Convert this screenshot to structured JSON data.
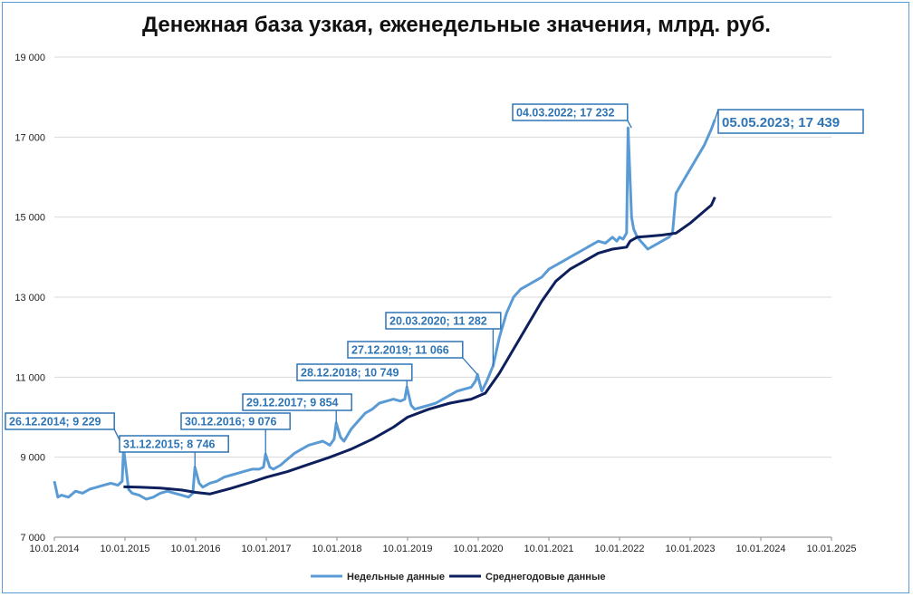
{
  "chart_data": {
    "type": "line",
    "title": "Денежная база узкая, еженедельные значения, млрд. руб.",
    "ylim": [
      7000,
      19000
    ],
    "y_ticks": [
      "7 000",
      "9 000",
      "11 000",
      "13 000",
      "15 000",
      "17 000",
      "19 000"
    ],
    "y_tick_values": [
      7000,
      9000,
      11000,
      13000,
      15000,
      17000,
      19000
    ],
    "x_ticks": [
      "10.01.2014",
      "10.01.2015",
      "10.01.2016",
      "10.01.2017",
      "10.01.2018",
      "10.01.2019",
      "10.01.2020",
      "10.01.2021",
      "10.01.2022",
      "10.01.2023",
      "10.01.2024",
      "10.01.2025"
    ],
    "x_tick_values": [
      2014.0,
      2015.0,
      2016.0,
      2017.0,
      2018.0,
      2019.0,
      2020.0,
      2021.0,
      2022.0,
      2023.0,
      2024.0,
      2025.0
    ],
    "grid": true,
    "legend_position": "bottom",
    "colors": {
      "weekly": "#5b9bd5",
      "average": "#0d1f5c",
      "annotation": "#2e75b6"
    },
    "series": [
      {
        "name": "Недельные данные",
        "x": [
          2014.0,
          2014.05,
          2014.1,
          2014.2,
          2014.3,
          2014.4,
          2014.5,
          2014.6,
          2014.7,
          2014.8,
          2014.9,
          2014.96,
          2014.98,
          2015.05,
          2015.1,
          2015.2,
          2015.3,
          2015.4,
          2015.5,
          2015.6,
          2015.7,
          2015.8,
          2015.9,
          2015.96,
          2015.99,
          2016.05,
          2016.1,
          2016.2,
          2016.3,
          2016.4,
          2016.5,
          2016.6,
          2016.7,
          2016.8,
          2016.9,
          2016.96,
          2016.99,
          2017.05,
          2017.1,
          2017.2,
          2017.3,
          2017.4,
          2017.5,
          2017.6,
          2017.7,
          2017.8,
          2017.9,
          2017.96,
          2017.99,
          2018.05,
          2018.1,
          2018.2,
          2018.3,
          2018.4,
          2018.5,
          2018.6,
          2018.7,
          2018.8,
          2018.9,
          2018.96,
          2018.99,
          2019.05,
          2019.1,
          2019.2,
          2019.3,
          2019.4,
          2019.5,
          2019.6,
          2019.7,
          2019.8,
          2019.9,
          2019.96,
          2019.99,
          2020.05,
          2020.12,
          2020.19,
          2020.21,
          2020.3,
          2020.4,
          2020.5,
          2020.6,
          2020.7,
          2020.8,
          2020.9,
          2021.0,
          2021.1,
          2021.2,
          2021.3,
          2021.4,
          2021.5,
          2021.6,
          2021.7,
          2021.8,
          2021.9,
          2021.96,
          2022.0,
          2022.05,
          2022.1,
          2022.12,
          2022.17,
          2022.2,
          2022.25,
          2022.3,
          2022.4,
          2022.5,
          2022.6,
          2022.7,
          2022.75,
          2022.8,
          2022.9,
          2023.0,
          2023.1,
          2023.2,
          2023.3,
          2023.35
        ],
        "values": [
          8400,
          8000,
          8050,
          8000,
          8150,
          8100,
          8200,
          8250,
          8300,
          8350,
          8300,
          8400,
          9229,
          8200,
          8100,
          8050,
          7950,
          8000,
          8100,
          8150,
          8100,
          8050,
          8000,
          8100,
          8746,
          8350,
          8250,
          8350,
          8400,
          8500,
          8550,
          8600,
          8650,
          8700,
          8700,
          8750,
          9076,
          8750,
          8700,
          8800,
          8950,
          9100,
          9200,
          9300,
          9350,
          9400,
          9300,
          9450,
          9854,
          9500,
          9400,
          9700,
          9900,
          10100,
          10200,
          10350,
          10400,
          10450,
          10400,
          10450,
          10749,
          10300,
          10200,
          10250,
          10300,
          10350,
          10450,
          10550,
          10650,
          10700,
          10750,
          10900,
          11066,
          10650,
          10900,
          11200,
          11282,
          12000,
          12600,
          13000,
          13200,
          13300,
          13400,
          13500,
          13700,
          13800,
          13900,
          14000,
          14100,
          14200,
          14300,
          14400,
          14350,
          14500,
          14400,
          14500,
          14450,
          14600,
          17232,
          15000,
          14700,
          14500,
          14400,
          14200,
          14300,
          14400,
          14500,
          14600,
          15600,
          15900,
          16200,
          16500,
          16800,
          17200,
          17439
        ]
      },
      {
        "name": "Среднегодовые данные",
        "x": [
          2014.98,
          2015.2,
          2015.5,
          2015.8,
          2016.0,
          2016.2,
          2016.5,
          2016.8,
          2017.0,
          2017.3,
          2017.6,
          2017.9,
          2018.2,
          2018.5,
          2018.8,
          2019.0,
          2019.3,
          2019.6,
          2019.9,
          2020.1,
          2020.3,
          2020.5,
          2020.7,
          2020.9,
          2021.1,
          2021.3,
          2021.5,
          2021.7,
          2021.9,
          2022.1,
          2022.15,
          2022.25,
          2022.4,
          2022.6,
          2022.8,
          2023.0,
          2023.2,
          2023.3,
          2023.35
        ],
        "values": [
          8260,
          8250,
          8230,
          8180,
          8120,
          8080,
          8220,
          8380,
          8500,
          8640,
          8820,
          9000,
          9200,
          9450,
          9750,
          10000,
          10200,
          10350,
          10450,
          10600,
          11100,
          11700,
          12300,
          12900,
          13400,
          13700,
          13900,
          14100,
          14200,
          14250,
          14400,
          14500,
          14520,
          14550,
          14600,
          14850,
          15150,
          15300,
          15500
        ]
      }
    ],
    "annotations": [
      {
        "label": "26.12.2014; 9 229",
        "x": 2014.98,
        "y": 9229
      },
      {
        "label": "31.12.2015; 8 746",
        "x": 2015.99,
        "y": 8746
      },
      {
        "label": "30.12.2016; 9 076",
        "x": 2016.99,
        "y": 9076
      },
      {
        "label": "29.12.2017; 9 854",
        "x": 2017.99,
        "y": 9854
      },
      {
        "label": "28.12.2018; 10 749",
        "x": 2018.99,
        "y": 10749
      },
      {
        "label": "27.12.2019; 11 066",
        "x": 2019.99,
        "y": 11066
      },
      {
        "label": "20.03.2020; 11 282",
        "x": 2020.21,
        "y": 11282
      },
      {
        "label": "04.03.2022; 17 232",
        "x": 2022.17,
        "y": 17232
      },
      {
        "label": "05.05.2023; 17 439",
        "x": 2023.35,
        "y": 17439
      }
    ]
  }
}
